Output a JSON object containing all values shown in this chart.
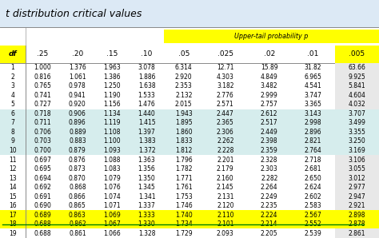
{
  "title": "t distribution critical values",
  "header_label": "Upper-tail probability p",
  "col_headers": [
    "df",
    ".25",
    ".20",
    ".15",
    ".10",
    ".05",
    ".025",
    ".02",
    ".01",
    ".005"
  ],
  "rows": [
    [
      1,
      1.0,
      1.376,
      1.963,
      3.078,
      6.314,
      12.71,
      15.89,
      31.82,
      63.66
    ],
    [
      2,
      0.816,
      1.061,
      1.386,
      1.886,
      2.92,
      4.303,
      4.849,
      6.965,
      9.925
    ],
    [
      3,
      0.765,
      0.978,
      1.25,
      1.638,
      2.353,
      3.182,
      3.482,
      4.541,
      5.841
    ],
    [
      4,
      0.741,
      0.941,
      1.19,
      1.533,
      2.132,
      2.776,
      2.999,
      3.747,
      4.604
    ],
    [
      5,
      0.727,
      0.92,
      1.156,
      1.476,
      2.015,
      2.571,
      2.757,
      3.365,
      4.032
    ],
    [
      6,
      0.718,
      0.906,
      1.134,
      1.44,
      1.943,
      2.447,
      2.612,
      3.143,
      3.707
    ],
    [
      7,
      0.711,
      0.896,
      1.119,
      1.415,
      1.895,
      2.365,
      2.517,
      2.998,
      3.499
    ],
    [
      8,
      0.706,
      0.889,
      1.108,
      1.397,
      1.86,
      2.306,
      2.449,
      2.896,
      3.355
    ],
    [
      9,
      0.703,
      0.883,
      1.1,
      1.383,
      1.833,
      2.262,
      2.398,
      2.821,
      3.25
    ],
    [
      10,
      0.7,
      0.879,
      1.093,
      1.372,
      1.812,
      2.228,
      2.359,
      2.764,
      3.169
    ],
    [
      11,
      0.697,
      0.876,
      1.088,
      1.363,
      1.796,
      2.201,
      2.328,
      2.718,
      3.106
    ],
    [
      12,
      0.695,
      0.873,
      1.083,
      1.356,
      1.782,
      2.179,
      2.303,
      2.681,
      3.055
    ],
    [
      13,
      0.694,
      0.87,
      1.079,
      1.35,
      1.771,
      2.16,
      2.282,
      2.65,
      3.012
    ],
    [
      14,
      0.692,
      0.868,
      1.076,
      1.345,
      1.761,
      2.145,
      2.264,
      2.624,
      2.977
    ],
    [
      15,
      0.691,
      0.866,
      1.074,
      1.341,
      1.753,
      2.131,
      2.249,
      2.602,
      2.947
    ],
    [
      16,
      0.69,
      0.865,
      1.071,
      1.337,
      1.746,
      2.12,
      2.235,
      2.583,
      2.921
    ],
    [
      17,
      0.689,
      0.863,
      1.069,
      1.333,
      1.74,
      2.11,
      2.224,
      2.567,
      2.898
    ],
    [
      18,
      0.688,
      0.862,
      1.067,
      1.33,
      1.734,
      2.101,
      2.214,
      2.552,
      2.878
    ],
    [
      19,
      0.688,
      0.861,
      1.066,
      1.328,
      1.729,
      2.093,
      2.205,
      2.539,
      2.861
    ]
  ],
  "highlight_rows": [
    17,
    18
  ],
  "stripe_rows": [
    6,
    7,
    8,
    9,
    10
  ],
  "title_fontsize": 9,
  "data_fontsize": 5.5,
  "header_fontsize": 6.5,
  "green_line_row": 18,
  "title_bg": "#dce9f5",
  "white_bg": "#ffffff",
  "stripe_bg": "#d6eded",
  "yellow_bg": "#ffff00",
  "last_col_other_bg": "#e8e8e8",
  "fig_bg": "#e8f0f0"
}
